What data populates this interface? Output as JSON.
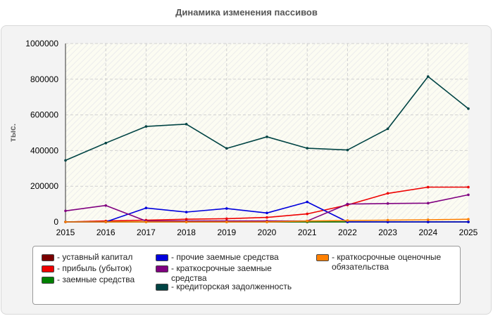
{
  "title": "Динамика изменения пассивов",
  "chart_data": {
    "type": "line",
    "title": "Динамика изменения пассивов",
    "xlabel": "",
    "ylabel": "тыс.",
    "x": [
      "2015",
      "2016",
      "2017",
      "2018",
      "2019",
      "2020",
      "2021",
      "2022",
      "2023",
      "2024",
      "2025"
    ],
    "ylim": [
      0,
      1000000
    ],
    "yticks": [
      "0",
      "200000",
      "400000",
      "600000",
      "800000",
      "1000000"
    ],
    "grid": true,
    "legend_position": "bottom",
    "series": [
      {
        "name": "уставный капитал",
        "color": "#7a0000",
        "values": [
          0,
          0,
          0,
          0,
          0,
          0,
          0,
          0,
          0,
          0,
          0
        ]
      },
      {
        "name": "прибыль (убыток)",
        "color": "#ee0000",
        "values": [
          0,
          5000,
          10000,
          15000,
          18000,
          25000,
          45000,
          95000,
          160000,
          195000,
          195000
        ]
      },
      {
        "name": "заемные средства",
        "color": "#008000",
        "values": [
          0,
          0,
          0,
          0,
          0,
          0,
          0,
          0,
          0,
          0,
          0
        ]
      },
      {
        "name": "прочие заемные средства",
        "color": "#0000dd",
        "values": [
          0,
          0,
          78000,
          55000,
          75000,
          50000,
          112000,
          0,
          0,
          0,
          0
        ]
      },
      {
        "name": "краткосрочные заемные средства",
        "color": "#800080",
        "values": [
          62000,
          92000,
          5000,
          5000,
          5000,
          5000,
          5000,
          100000,
          103000,
          105000,
          152000
        ]
      },
      {
        "name": "кредиторская задолженность",
        "color": "#004444",
        "values": [
          345000,
          442000,
          535000,
          548000,
          412000,
          477000,
          413000,
          403000,
          522000,
          815000,
          635000
        ]
      },
      {
        "name": "краткосрочные оценочные обязательства",
        "color": "#ff8000",
        "values": [
          0,
          0,
          0,
          0,
          0,
          0,
          5000,
          8000,
          10000,
          12000,
          15000
        ]
      }
    ]
  }
}
